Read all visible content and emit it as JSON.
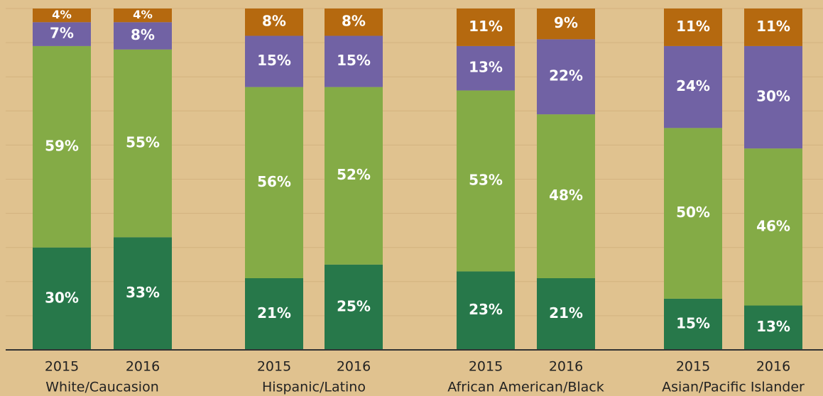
{
  "chart_data": {
    "type": "stacked_bar",
    "categories": [
      "2015",
      "2016",
      "2015",
      "2016",
      "2015",
      "2016",
      "2015",
      "2016"
    ],
    "groups": [
      "White/Caucasion",
      "Hispanic/Latino",
      "African American/Black",
      "Asian/Pacific Islander"
    ],
    "series": [
      {
        "color": "#27784a",
        "values": [
          30,
          33,
          21,
          25,
          23,
          21,
          15,
          13
        ],
        "value_labels": [
          "30%",
          "33%",
          "21%",
          "25%",
          "23%",
          "21%",
          "15%",
          "13%"
        ]
      },
      {
        "color": "#84ab46",
        "values": [
          59,
          55,
          56,
          52,
          53,
          48,
          50,
          46
        ],
        "value_labels": [
          "59%",
          "55%",
          "56%",
          "52%",
          "53%",
          "48%",
          "50%",
          "46%"
        ]
      },
      {
        "color": "#7162a4",
        "values": [
          7,
          8,
          15,
          15,
          13,
          22,
          24,
          30
        ],
        "value_labels": [
          "7%",
          "8%",
          "15%",
          "15%",
          "13%",
          "22%",
          "24%",
          "30%"
        ]
      },
      {
        "color": "#b5690f",
        "values": [
          4,
          4,
          8,
          8,
          11,
          9,
          11,
          11
        ],
        "value_labels": [
          "4%",
          "4%",
          "8%",
          "8%",
          "11%",
          "9%",
          "11%",
          "11%"
        ]
      }
    ],
    "ylim": [
      0,
      100
    ],
    "yticks": [
      0,
      10,
      20,
      30,
      40,
      50,
      60,
      70,
      80,
      90,
      100
    ],
    "grid": true
  }
}
